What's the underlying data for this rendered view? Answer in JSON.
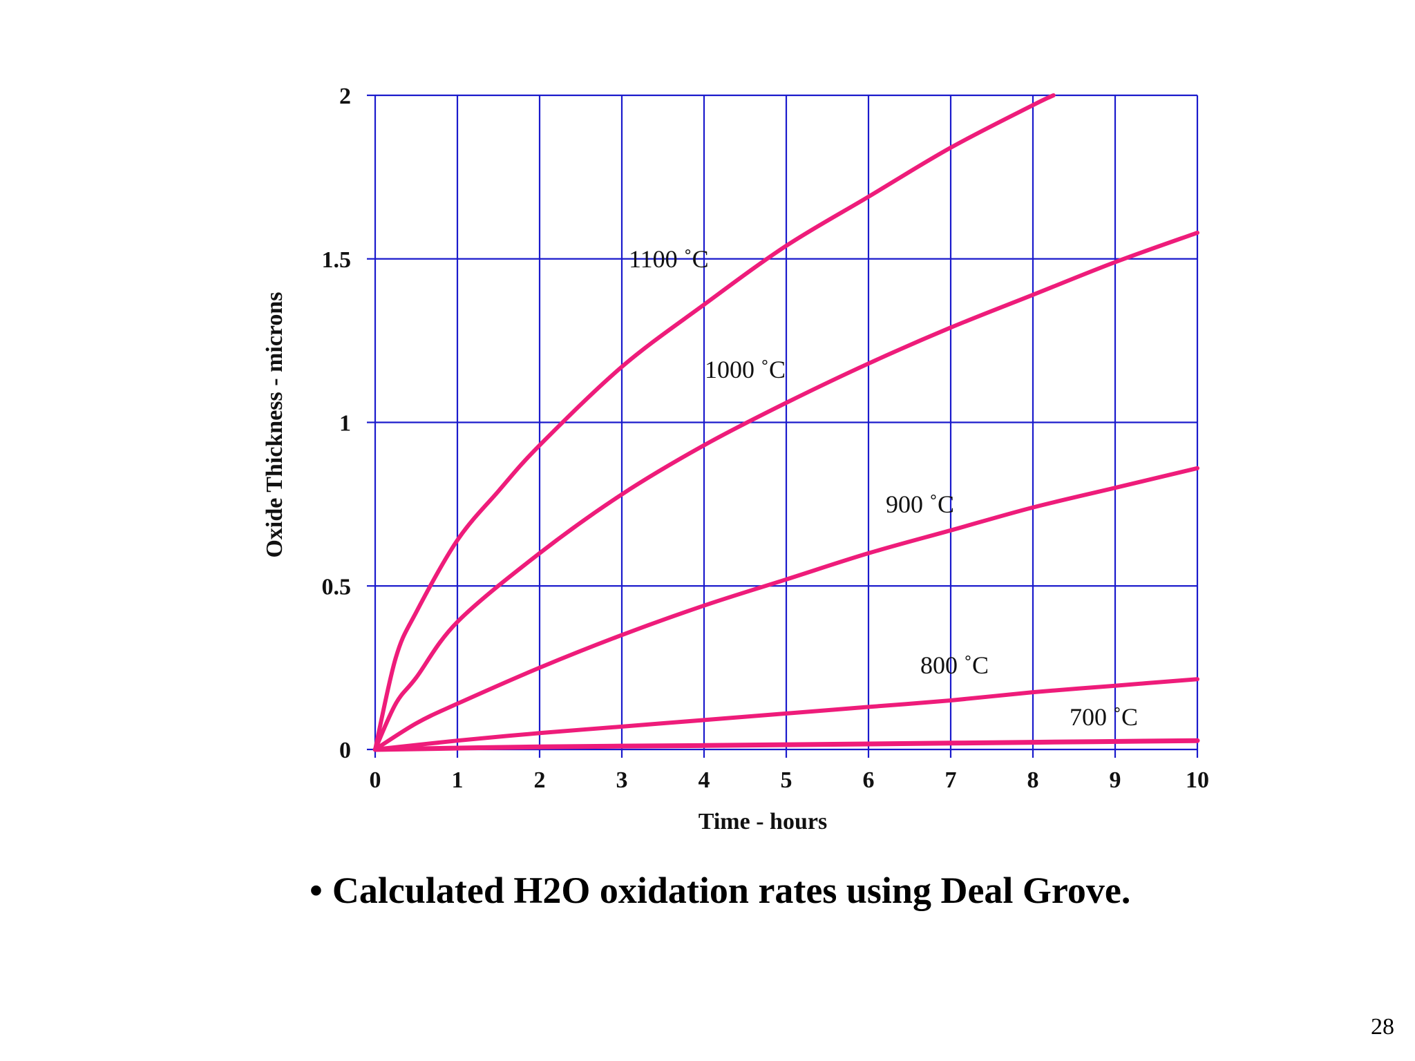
{
  "chart_data": {
    "type": "line",
    "xlabel": "Time - hours",
    "ylabel": "Oxide Thickness - microns",
    "xlim": [
      0,
      10
    ],
    "ylim": [
      0,
      2
    ],
    "x_ticks": [
      "0",
      "1",
      "2",
      "3",
      "4",
      "5",
      "6",
      "7",
      "8",
      "9",
      "10"
    ],
    "y_ticks": [
      "0",
      "0.5",
      "1",
      "1.5",
      "2"
    ],
    "grid": true,
    "grid_color": "#1a1acc",
    "line_color": "#ee1c7a",
    "series": [
      {
        "name": "1100 ˚C",
        "x": [
          0,
          0.25,
          0.5,
          1,
          1.5,
          2,
          3,
          4,
          5,
          6,
          7,
          8,
          8.25
        ],
        "y": [
          0,
          0.28,
          0.42,
          0.64,
          0.79,
          0.93,
          1.17,
          1.36,
          1.54,
          1.69,
          1.84,
          1.97,
          2.0
        ]
      },
      {
        "name": "1000 ˚C",
        "x": [
          0,
          0.25,
          0.5,
          1,
          2,
          3,
          4,
          5,
          6,
          7,
          8,
          9,
          10
        ],
        "y": [
          0,
          0.14,
          0.22,
          0.39,
          0.6,
          0.78,
          0.93,
          1.06,
          1.18,
          1.29,
          1.39,
          1.49,
          1.58
        ]
      },
      {
        "name": "900 ˚C",
        "x": [
          0,
          0.5,
          1,
          2,
          3,
          4,
          5,
          6,
          7,
          8,
          9,
          10
        ],
        "y": [
          0,
          0.08,
          0.14,
          0.25,
          0.35,
          0.44,
          0.52,
          0.6,
          0.67,
          0.74,
          0.8,
          0.86
        ]
      },
      {
        "name": "800 ˚C",
        "x": [
          0,
          1,
          2,
          3,
          4,
          5,
          6,
          7,
          8,
          9,
          10
        ],
        "y": [
          0,
          0.027,
          0.05,
          0.07,
          0.09,
          0.11,
          0.13,
          0.15,
          0.175,
          0.195,
          0.215
        ]
      },
      {
        "name": "700 ˚C",
        "x": [
          0,
          2,
          4,
          6,
          8,
          10
        ],
        "y": [
          0,
          0.008,
          0.012,
          0.017,
          0.022,
          0.027
        ]
      }
    ]
  },
  "caption": {
    "bullet": "•",
    "text": "Calculated H2O oxidation rates using Deal Grove."
  },
  "page_number": "28"
}
